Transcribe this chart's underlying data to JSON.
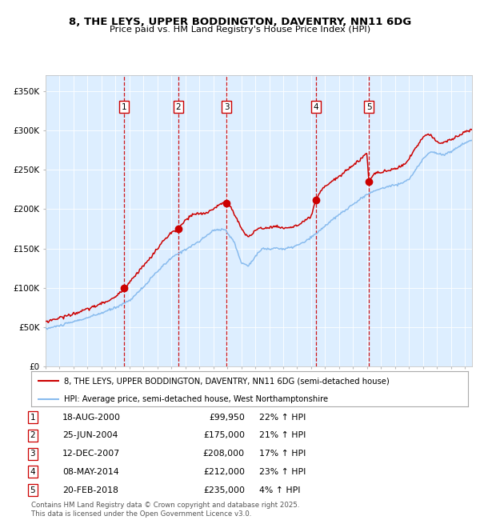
{
  "title": "8, THE LEYS, UPPER BODDINGTON, DAVENTRY, NN11 6DG",
  "subtitle": "Price paid vs. HM Land Registry's House Price Index (HPI)",
  "legend_line1": "8, THE LEYS, UPPER BODDINGTON, DAVENTRY, NN11 6DG (semi-detached house)",
  "legend_line2": "HPI: Average price, semi-detached house, West Northamptonshire",
  "footer": "Contains HM Land Registry data © Crown copyright and database right 2025.\nThis data is licensed under the Open Government Licence v3.0.",
  "transactions": [
    {
      "num": 1,
      "date": "18-AUG-2000",
      "price": 99950,
      "pct": "22%",
      "dir": "↑"
    },
    {
      "num": 2,
      "date": "25-JUN-2004",
      "price": 175000,
      "pct": "21%",
      "dir": "↑"
    },
    {
      "num": 3,
      "date": "12-DEC-2007",
      "price": 208000,
      "pct": "17%",
      "dir": "↑"
    },
    {
      "num": 4,
      "date": "08-MAY-2014",
      "price": 212000,
      "pct": "23%",
      "dir": "↑"
    },
    {
      "num": 5,
      "date": "20-FEB-2018",
      "price": 235000,
      "pct": "4%",
      "dir": "↑"
    }
  ],
  "sale_years": [
    2000.63,
    2004.48,
    2007.95,
    2014.36,
    2018.13
  ],
  "sale_prices": [
    99950,
    175000,
    208000,
    212000,
    235000
  ],
  "vline_color": "#cc0000",
  "hpi_color": "#88bbee",
  "price_color": "#cc0000",
  "marker_color": "#cc0000",
  "bg_color": "#ddeeff",
  "ylim": [
    0,
    370000
  ],
  "xlim_start": 1995.0,
  "xlim_end": 2025.5
}
